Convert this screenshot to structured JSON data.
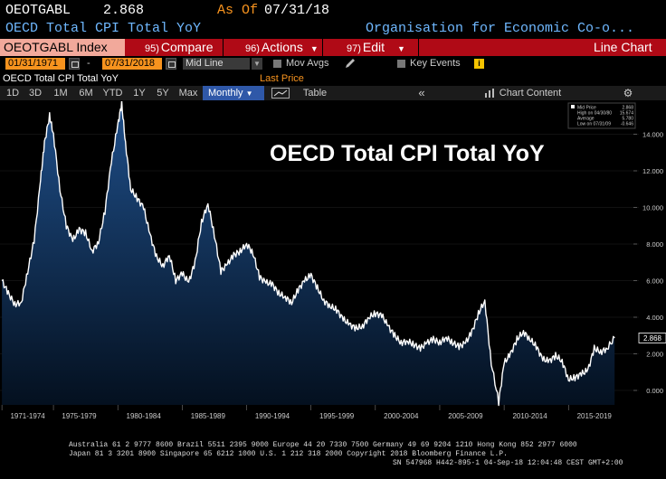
{
  "header": {
    "ticker": "OEOTGABL",
    "last_value": "2.868",
    "as_of_label": "As Of",
    "as_of_date": "07/31/18",
    "series_name": "OECD Total CPI Total YoY",
    "source": "Organisation for Economic Co-o..."
  },
  "menubar": {
    "security": "OEOTGABL Index",
    "compare_num": "95)",
    "compare_label": "Compare",
    "actions_num": "96)",
    "actions_label": "Actions",
    "edit_num": "97)",
    "edit_label": "Edit",
    "view_label": "Line Chart"
  },
  "toolbar": {
    "start_date": "01/31/1971",
    "dash": "-",
    "end_date": "07/31/2018",
    "line_mode": "Mid Line",
    "mov_avgs": "Mov Avgs",
    "key_events": "Key Events",
    "last_price": "Last Price"
  },
  "series_label": "OECD Total CPI Total YoY",
  "periods": [
    "1D",
    "3D",
    "1M",
    "6M",
    "YTD",
    "1Y",
    "5Y",
    "Max"
  ],
  "frequency": "Monthly",
  "table_label": "Table",
  "chart_content_label": "Chart Content",
  "colors": {
    "accent": "#f7931e",
    "menu_red": "#b00a16",
    "area_top": "#1f4f8a",
    "line": "#ffffff"
  },
  "legend": {
    "mid_price_label": "Mid Price",
    "mid_price_value": "2.868",
    "high_label": "High on 04/30/80",
    "high_value": "15.674",
    "average_label": "Average",
    "average_value": "5.780",
    "low_label": "Low on 07/31/09",
    "low_value": "-0.646"
  },
  "chart_data": {
    "type": "area",
    "title": "OECD Total CPI Total YoY",
    "xlabel": "",
    "ylabel": "",
    "ylim": [
      -1.0,
      16.0
    ],
    "y_ticks": [
      "14.000",
      "12.000",
      "10.000",
      "8.000",
      "6.000",
      "4.000",
      "2.000",
      "0.000"
    ],
    "y_tick_values": [
      14,
      12,
      10,
      8,
      6,
      4,
      2,
      0
    ],
    "x_labels": [
      "1971-1974",
      "1975-1979",
      "1980-1984",
      "1985-1989",
      "1990-1994",
      "1995-1999",
      "2000-2004",
      "2005-2009",
      "2010-2014",
      "2015-2019"
    ],
    "x_label_start_years": [
      1971,
      1975,
      1980,
      1985,
      1990,
      1995,
      2000,
      2005,
      2010,
      2015
    ],
    "last_value_label": "2.868",
    "series": [
      {
        "name": "OECD Total CPI Total YoY",
        "x": [
          1971.0,
          1971.5,
          1972.0,
          1972.5,
          1973.0,
          1973.5,
          1974.0,
          1974.3,
          1974.7,
          1975.0,
          1975.5,
          1976.0,
          1976.5,
          1977.0,
          1977.5,
          1978.0,
          1978.5,
          1979.0,
          1979.5,
          1980.0,
          1980.3,
          1980.6,
          1981.0,
          1981.5,
          1982.0,
          1982.5,
          1983.0,
          1983.5,
          1984.0,
          1984.5,
          1985.0,
          1985.5,
          1986.0,
          1986.5,
          1987.0,
          1987.5,
          1988.0,
          1988.5,
          1989.0,
          1989.5,
          1990.0,
          1990.5,
          1991.0,
          1991.5,
          1992.0,
          1992.5,
          1993.0,
          1993.5,
          1994.0,
          1994.5,
          1995.0,
          1995.5,
          1996.0,
          1996.5,
          1997.0,
          1997.5,
          1998.0,
          1998.5,
          1999.0,
          1999.5,
          2000.0,
          2000.5,
          2001.0,
          2001.5,
          2002.0,
          2002.5,
          2003.0,
          2003.5,
          2004.0,
          2004.5,
          2005.0,
          2005.5,
          2006.0,
          2006.5,
          2007.0,
          2007.5,
          2008.0,
          2008.5,
          2009.0,
          2009.58,
          2010.0,
          2010.5,
          2011.0,
          2011.5,
          2012.0,
          2012.5,
          2013.0,
          2013.5,
          2014.0,
          2014.5,
          2015.0,
          2015.5,
          2016.0,
          2016.5,
          2017.0,
          2017.5,
          2018.0,
          2018.58
        ],
        "values": [
          6.0,
          5.3,
          4.7,
          4.8,
          6.5,
          8.2,
          11.5,
          13.5,
          15.0,
          14.0,
          11.0,
          9.0,
          8.2,
          8.8,
          8.6,
          7.6,
          8.1,
          9.8,
          12.5,
          14.5,
          15.674,
          13.5,
          11.0,
          10.5,
          10.0,
          8.5,
          7.3,
          6.8,
          7.4,
          6.0,
          6.4,
          5.9,
          7.0,
          9.2,
          10.2,
          8.5,
          6.5,
          6.9,
          7.4,
          7.6,
          8.0,
          7.5,
          6.2,
          5.9,
          5.8,
          5.3,
          5.1,
          4.8,
          5.5,
          6.0,
          6.3,
          5.6,
          4.9,
          4.6,
          4.4,
          3.9,
          3.6,
          3.4,
          3.5,
          4.0,
          4.2,
          4.1,
          3.5,
          3.0,
          2.6,
          2.7,
          2.5,
          2.3,
          2.6,
          2.8,
          2.6,
          2.9,
          2.6,
          2.4,
          2.6,
          3.2,
          4.2,
          4.9,
          1.5,
          -0.646,
          1.5,
          2.0,
          2.8,
          3.2,
          2.8,
          2.4,
          1.7,
          1.6,
          1.9,
          1.6,
          0.6,
          0.7,
          0.9,
          1.1,
          2.3,
          2.1,
          2.3,
          2.868
        ]
      }
    ]
  },
  "footer": {
    "line1": "Australia 61 2 9777 8600 Brazil 5511 2395 9000 Europe 44 20 7330 7500 Germany 49 69 9204 1210 Hong Kong 852 2977 6000",
    "line2": "Japan 81 3 3201 8900        Singapore 65 6212 1000        U.S. 1 212 318 2000        Copyright 2018 Bloomberg Finance L.P.",
    "line3": "SN 547968 H442-895-1 04-Sep-18 12:04:48 CEST GMT+2:00"
  }
}
